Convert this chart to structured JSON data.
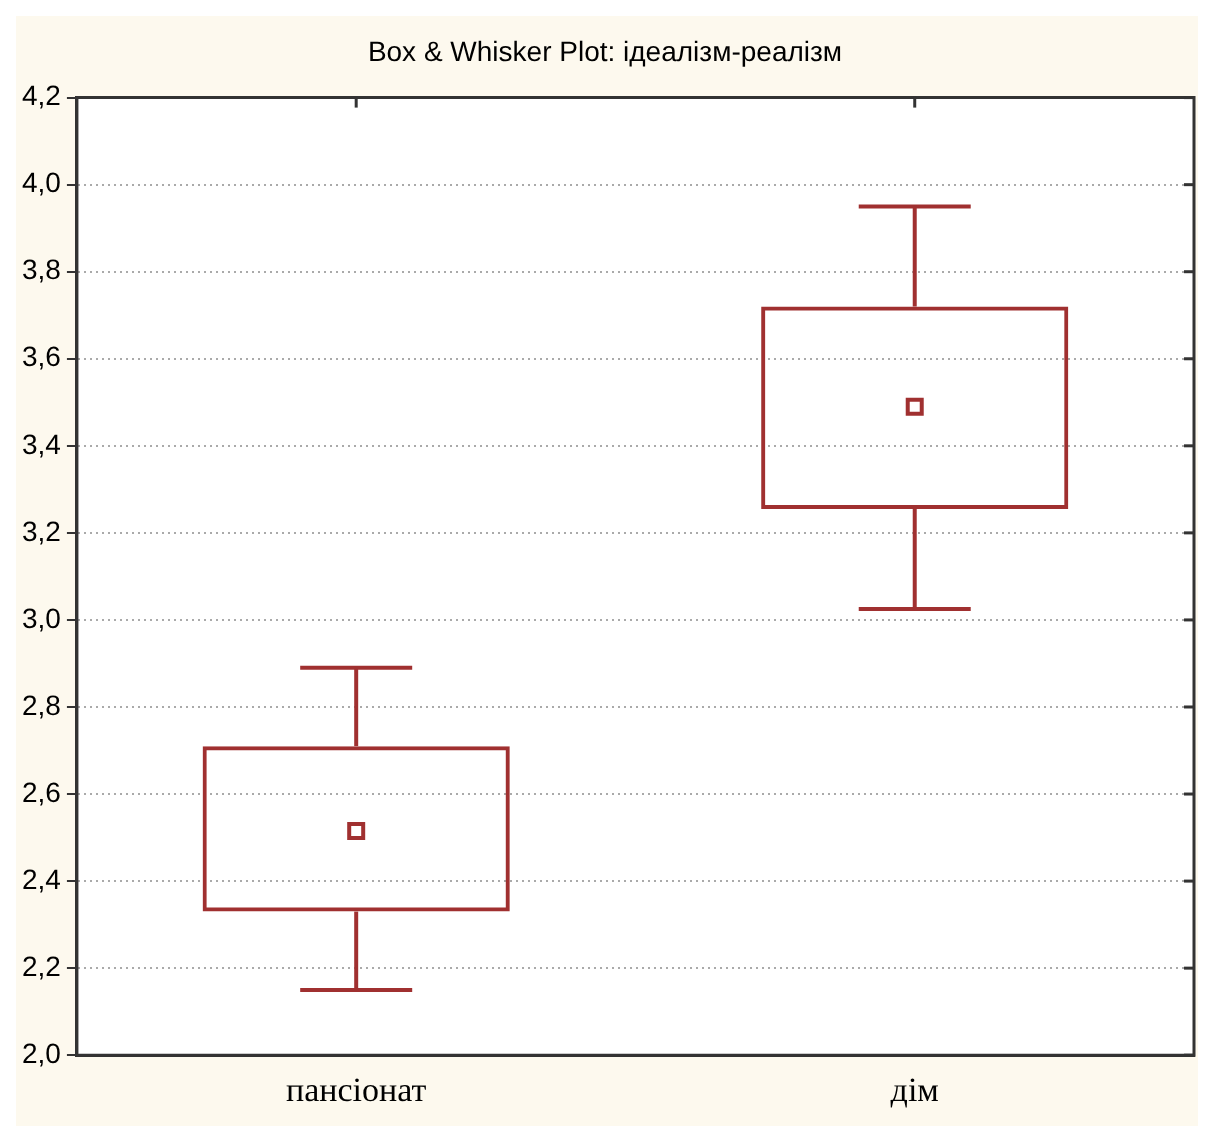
{
  "chart_data": {
    "type": "box",
    "title": "Box & Whisker Plot: ідеалізм-реалізм",
    "categories": [
      "пансіонат",
      "дім"
    ],
    "boxes": [
      {
        "low": 2.15,
        "q1": 2.33,
        "median": 2.515,
        "q3": 2.71,
        "high": 2.89
      },
      {
        "low": 3.025,
        "q1": 3.255,
        "median": 3.49,
        "q3": 3.72,
        "high": 3.95
      }
    ],
    "color": "#a03030",
    "ylim": [
      2.0,
      4.2
    ],
    "yticks": [
      {
        "value": 2.0,
        "label": "2,0"
      },
      {
        "value": 2.2,
        "label": "2,2"
      },
      {
        "value": 2.4,
        "label": "2,4"
      },
      {
        "value": 2.6,
        "label": "2,6"
      },
      {
        "value": 2.8,
        "label": "2,8"
      },
      {
        "value": 3.0,
        "label": "3,0"
      },
      {
        "value": 3.2,
        "label": "3,2"
      },
      {
        "value": 3.4,
        "label": "3,4"
      },
      {
        "value": 3.6,
        "label": "3,6"
      },
      {
        "value": 3.8,
        "label": "3,8"
      },
      {
        "value": 4.0,
        "label": "4,0"
      },
      {
        "value": 4.2,
        "label": "4,2"
      }
    ],
    "grid": "y",
    "marker": "square",
    "legend": false
  }
}
